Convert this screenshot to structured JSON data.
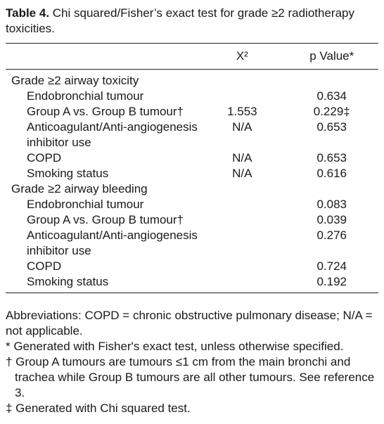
{
  "title": {
    "label": "Table 4.",
    "text": "Chi squared/Fisher’s exact test for grade ≥2 radiotherapy toxicities."
  },
  "table": {
    "header": {
      "chi": "X²",
      "p": "p Value*"
    },
    "groups": [
      {
        "label": "Grade ≥2 airway toxicity",
        "rows": [
          {
            "label": "Endobronchial tumour",
            "p": "0.634"
          },
          {
            "label": "Group A vs. Group B tumour†",
            "chi": "1.553",
            "p": "0.229‡"
          },
          {
            "label": "Anticoagulant/Anti-angiogenesis inhibitor use",
            "chi": "N/A",
            "p": "0.653"
          },
          {
            "label": "COPD",
            "chi": "N/A",
            "p": "0.653"
          },
          {
            "label": "Smoking status",
            "chi": "N/A",
            "p": "0.616"
          }
        ]
      },
      {
        "label": "Grade ≥2 airway bleeding",
        "rows": [
          {
            "label": "Endobronchial tumour",
            "p": "0.083"
          },
          {
            "label": "Group A vs. Group B tumour†",
            "p": "0.039"
          },
          {
            "label": "Anticoagulant/Anti-angiogenesis inhibitor use",
            "p": "0.276"
          },
          {
            "label": "COPD",
            "p": "0.724"
          },
          {
            "label": "Smoking status",
            "p": "0.192"
          }
        ]
      }
    ]
  },
  "footnotes": [
    "Abbreviations: COPD = chronic obstructive pulmonary disease; N/A = not applicable.",
    "* Generated with Fisher's exact test, unless otherwise specified.",
    "† Group A tumours are tumours ≤1 cm from the main bronchi and trachea while Group B tumours are all other tumours. See reference 3.",
    "‡ Generated with Chi squared test."
  ]
}
